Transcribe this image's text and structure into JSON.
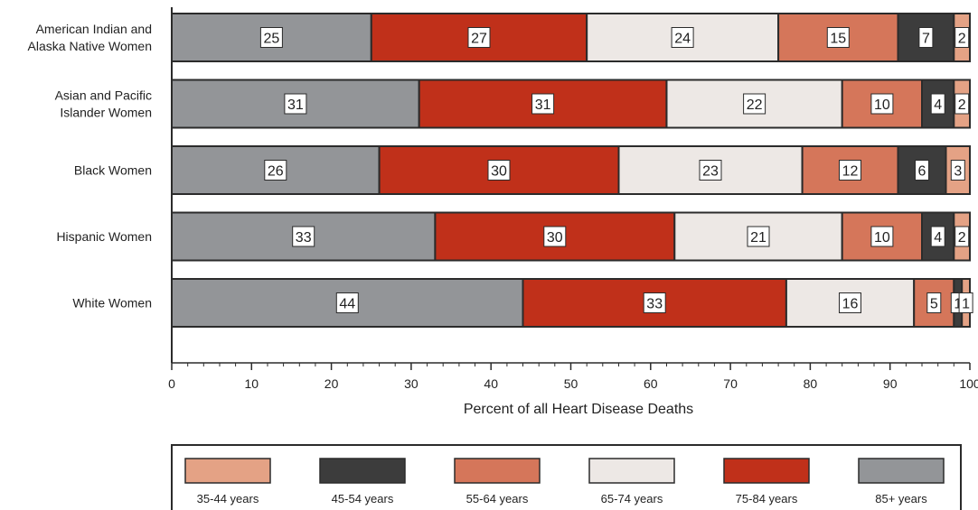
{
  "chart_data": {
    "type": "bar",
    "orientation": "horizontal",
    "stacked": true,
    "title": "",
    "xlabel": "Percent of all Heart Disease Deaths",
    "ylabel": "",
    "xlim": [
      0,
      100
    ],
    "x_ticks": [
      0,
      10,
      20,
      30,
      40,
      50,
      60,
      70,
      80,
      90,
      100
    ],
    "grid": false,
    "legend_position": "bottom",
    "categories": [
      "American Indian and\nAlaska Native Women",
      "Asian and Pacific\nIslander Women",
      "Black Women",
      "Hispanic Women",
      "White Women"
    ],
    "series": [
      {
        "name": "85+ years",
        "color": "#939598",
        "values": [
          25,
          31,
          26,
          33,
          44
        ]
      },
      {
        "name": "75-84 years",
        "color": "#c0301a",
        "values": [
          27,
          31,
          30,
          30,
          33
        ]
      },
      {
        "name": "65-74 years",
        "color": "#ede8e5",
        "values": [
          24,
          22,
          23,
          21,
          16
        ]
      },
      {
        "name": "55-64 years",
        "color": "#d5765a",
        "values": [
          15,
          10,
          12,
          10,
          5
        ]
      },
      {
        "name": "45-54 years",
        "color": "#3c3c3c",
        "values": [
          7,
          4,
          6,
          4,
          1
        ]
      },
      {
        "name": "35-44 years",
        "color": "#e4a285",
        "values": [
          2,
          2,
          3,
          2,
          1
        ]
      }
    ],
    "legend_order": [
      "35-44 years",
      "45-54 years",
      "55-64 years",
      "65-74 years",
      "75-84 years",
      "85+ years"
    ]
  }
}
